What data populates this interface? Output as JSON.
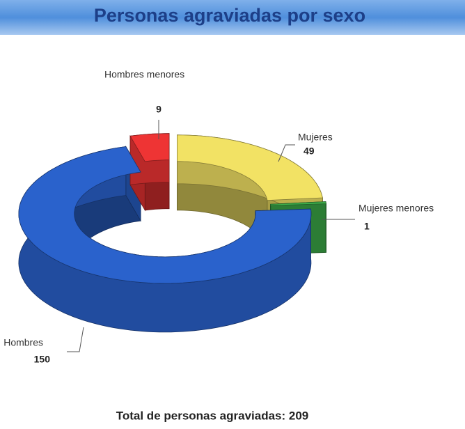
{
  "chart_data": {
    "type": "pie",
    "title": "Personas agraviadas por sexo",
    "categories": [
      "Mujeres",
      "Mujeres menores",
      "Hombres",
      "Hombres menores"
    ],
    "values": [
      49,
      1,
      150,
      9
    ],
    "colors": [
      "#f2e264",
      "#3fb34c",
      "#2a62cc",
      "#ee3434"
    ],
    "footer": "Total de personas agraviadas: 209"
  }
}
